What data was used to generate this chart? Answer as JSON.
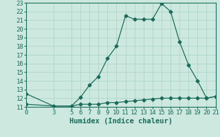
{
  "xlabel": "Humidex (Indice chaleur)",
  "x_ticks": [
    0,
    3,
    5,
    6,
    7,
    8,
    9,
    10,
    11,
    12,
    13,
    14,
    15,
    16,
    17,
    18,
    19,
    20,
    21
  ],
  "ylim": [
    11,
    23
  ],
  "xlim": [
    0,
    21
  ],
  "y_ticks": [
    11,
    12,
    13,
    14,
    15,
    16,
    17,
    18,
    19,
    20,
    21,
    22,
    23
  ],
  "line1_x": [
    0,
    3,
    5,
    6,
    7,
    8,
    9,
    10,
    11,
    12,
    13,
    14,
    15,
    16,
    17,
    18,
    19,
    20,
    21
  ],
  "line1_y": [
    12.5,
    11.1,
    11.1,
    12.1,
    13.5,
    14.5,
    16.6,
    18.0,
    21.5,
    21.1,
    21.1,
    21.1,
    22.9,
    22.0,
    18.5,
    15.8,
    14.0,
    12.0,
    12.2
  ],
  "line2_x": [
    0,
    3,
    5,
    6,
    7,
    8,
    9,
    10,
    11,
    12,
    13,
    14,
    15,
    16,
    17,
    18,
    19,
    20,
    21
  ],
  "line2_y": [
    11.3,
    11.1,
    11.1,
    11.3,
    11.3,
    11.3,
    11.5,
    11.5,
    11.6,
    11.7,
    11.8,
    11.9,
    12.0,
    12.0,
    12.0,
    12.0,
    12.0,
    12.0,
    12.2
  ],
  "line_color": "#1a6b5a",
  "bg_color": "#cce8df",
  "grid_color": "#aed4c8",
  "tick_label_fontsize": 6.5,
  "xlabel_fontsize": 7.5,
  "marker": "D",
  "marker_size": 2.5
}
